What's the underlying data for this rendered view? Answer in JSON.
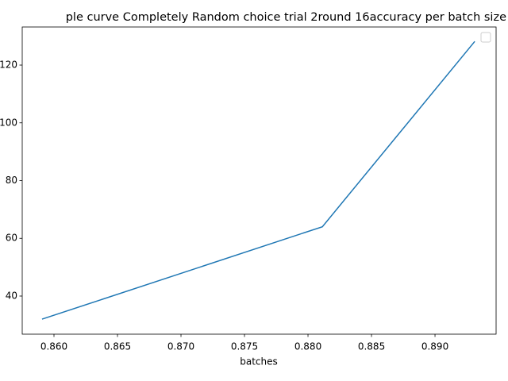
{
  "chart_data": {
    "type": "line",
    "title": "ple curve Completely Random choice trial 2round 16accuracy per batch size",
    "x_label": "batches",
    "x": [
      0.85906,
      0.88113,
      0.89313
    ],
    "series": [
      {
        "color": "#1f77b4",
        "values": [
          32,
          64,
          128.2
        ]
      }
    ],
    "xlim": [
      0.8575,
      0.89481
    ],
    "xticks": [
      {
        "value": 0.86,
        "label": "0.860"
      },
      {
        "value": 0.865,
        "label": "0.865"
      },
      {
        "value": 0.87,
        "label": "0.870"
      },
      {
        "value": 0.875,
        "label": "0.875"
      },
      {
        "value": 0.88,
        "label": "0.880"
      },
      {
        "value": 0.885,
        "label": "0.885"
      },
      {
        "value": 0.89,
        "label": "0.890"
      }
    ],
    "ylim": [
      26.8,
      133.2
    ],
    "yticks": [
      40,
      60,
      80,
      100,
      120
    ],
    "grid": false
  }
}
